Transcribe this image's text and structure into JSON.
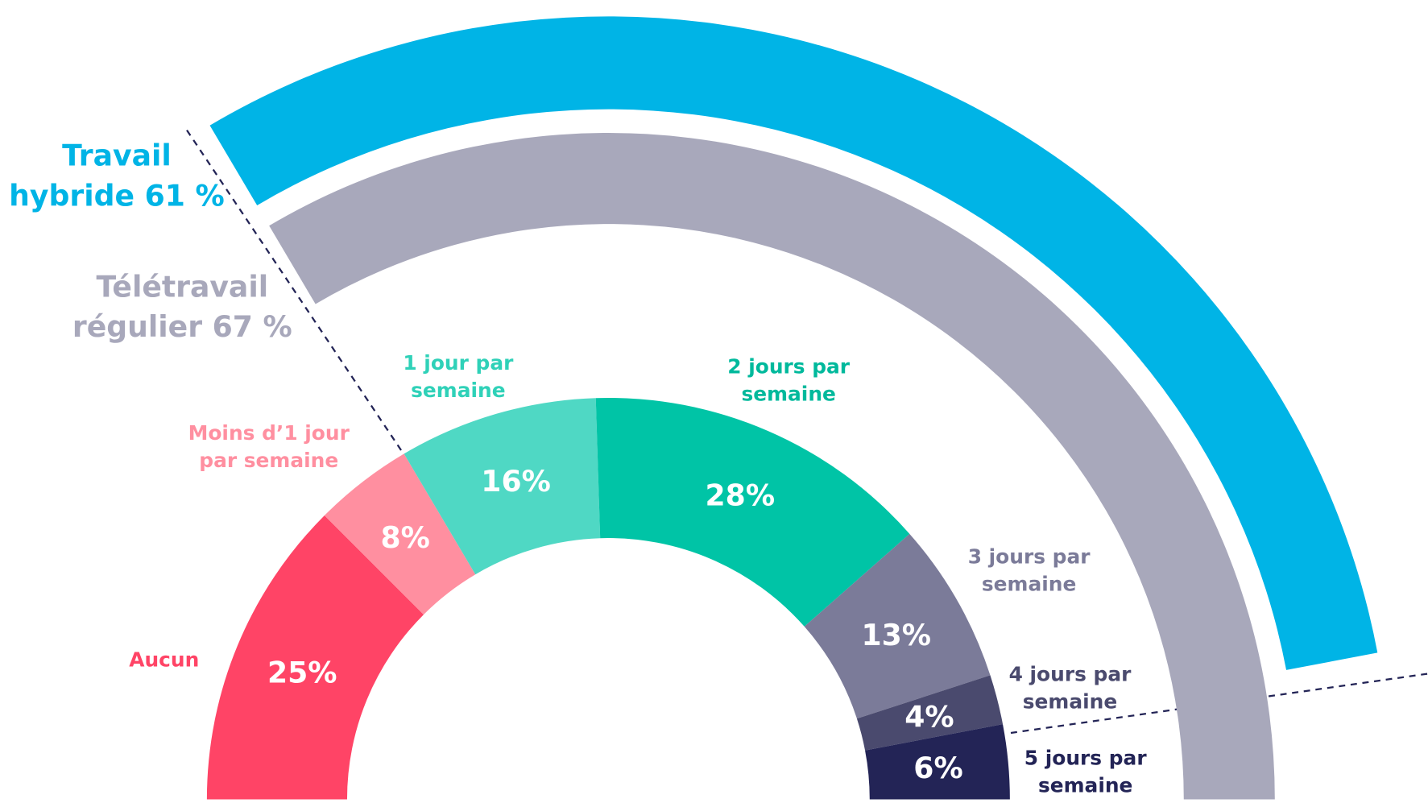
{
  "chart_data": {
    "type": "pie",
    "categories": [
      [
        "Aucun"
      ],
      [
        "Moins d’1 jour",
        "par semaine"
      ],
      [
        "1 jour par",
        "semaine"
      ],
      [
        "2 jours par",
        "semaine"
      ],
      [
        "3 jours par",
        "semaine"
      ],
      [
        "4 jours par",
        "semaine"
      ],
      [
        "5 jours par",
        "semaine"
      ]
    ],
    "values": [
      25,
      8,
      16,
      28,
      13,
      4,
      6
    ],
    "value_labels": [
      "25%",
      "8%",
      "16%",
      "28%",
      "13%",
      "4%",
      "6%"
    ],
    "colors": [
      "#ff4466",
      "#ff8fa0",
      "#4fd8c4",
      "#00c4a6",
      "#7b7b99",
      "#4a4a6e",
      "#232456"
    ],
    "label_colors": [
      "#ff4466",
      "#ff8fa0",
      "#2fd1b8",
      "#00b99c",
      "#7b7b99",
      "#4a4a6e",
      "#232456"
    ],
    "rings": [
      {
        "label": [
          "Travail",
          "hybride 61 %"
        ],
        "value": 61,
        "color": "#00b4e6"
      },
      {
        "label": [
          "Télétravail",
          "régulier 67 %"
        ],
        "value": 67,
        "color": "#a8a8bb"
      }
    ]
  }
}
